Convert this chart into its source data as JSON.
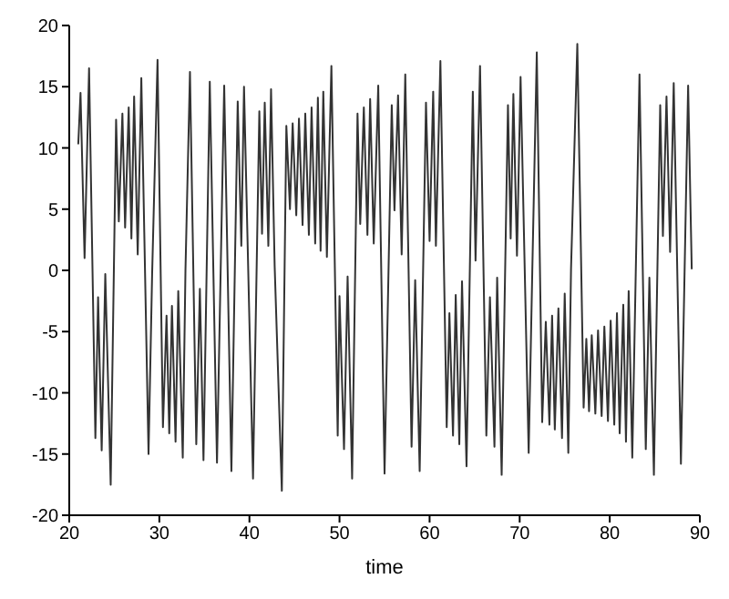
{
  "chart_data": {
    "type": "line",
    "xlabel": "time",
    "xlim": [
      20,
      90
    ],
    "xticks": [
      20,
      30,
      40,
      50,
      60,
      70,
      80,
      90
    ],
    "ylim": [
      -20,
      20
    ],
    "yticks": [
      -20,
      -15,
      -10,
      -5,
      0,
      5,
      10,
      15,
      20
    ],
    "grid": false,
    "legend": false,
    "marker": "none",
    "line_style": "solid",
    "series": [
      {
        "color": "#333333",
        "x": [
          21.0,
          21.25,
          21.7,
          22.2,
          22.9,
          23.2,
          23.6,
          24.0,
          24.6,
          25.2,
          25.5,
          25.9,
          26.2,
          26.6,
          26.9,
          27.2,
          27.6,
          28.0,
          28.8,
          29.2,
          29.8,
          30.4,
          30.8,
          31.1,
          31.4,
          31.8,
          32.1,
          32.6,
          32.9,
          33.4,
          34.1,
          34.5,
          34.9,
          35.6,
          36.4,
          37.2,
          38.0,
          38.7,
          39.1,
          39.4,
          40.4,
          41.1,
          41.4,
          41.7,
          42.1,
          42.4,
          42.8,
          43.6,
          44.1,
          44.5,
          44.8,
          45.2,
          45.5,
          45.9,
          46.2,
          46.6,
          46.9,
          47.3,
          47.6,
          47.9,
          48.2,
          48.6,
          49.1,
          49.8,
          50.0,
          50.5,
          50.9,
          51.4,
          52.0,
          52.3,
          52.7,
          53.1,
          53.4,
          53.8,
          54.3,
          55.0,
          55.8,
          56.1,
          56.5,
          56.9,
          57.3,
          58.0,
          58.4,
          58.9,
          59.6,
          60.0,
          60.4,
          60.7,
          61.2,
          61.9,
          62.2,
          62.6,
          62.9,
          63.3,
          63.6,
          64.1,
          64.8,
          65.1,
          65.6,
          66.3,
          66.7,
          67.2,
          67.5,
          68.0,
          68.7,
          69.0,
          69.3,
          69.7,
          70.1,
          71.0,
          71.4,
          71.9,
          72.5,
          72.9,
          73.3,
          73.6,
          73.9,
          74.3,
          74.7,
          75.0,
          75.4,
          75.7,
          76.4,
          77.1,
          77.4,
          77.7,
          78.0,
          78.4,
          78.7,
          79.1,
          79.4,
          79.8,
          80.1,
          80.5,
          80.8,
          81.1,
          81.5,
          81.8,
          82.1,
          82.5,
          83.3,
          84.0,
          84.4,
          84.9,
          85.6,
          85.9,
          86.3,
          86.7,
          87.1,
          87.9,
          88.7,
          89.1
        ],
        "values": [
          10.3,
          14.5,
          1,
          16.5,
          -13.7,
          -2.2,
          -14.7,
          -0.3,
          -17.5,
          12.3,
          4,
          12.8,
          3.5,
          13.3,
          2.6,
          14.2,
          1.3,
          15.7,
          -15,
          -0.3,
          17.2,
          -12.8,
          -3.7,
          -13.3,
          -2.9,
          -14,
          -1.7,
          -15.3,
          0,
          16.2,
          -14.2,
          -1.5,
          -15.5,
          15.4,
          -15.7,
          15.1,
          -16.4,
          13.8,
          2,
          15,
          -17,
          13,
          3,
          13.7,
          2,
          14.8,
          0.4,
          -18,
          11.8,
          5,
          12,
          4.5,
          12.4,
          3.7,
          12.8,
          2.9,
          13.3,
          2.2,
          14.1,
          1.6,
          14.6,
          1.1,
          16.7,
          -13.5,
          -2.1,
          -14.6,
          -0.5,
          -17,
          12.8,
          3.8,
          13.3,
          2.9,
          14,
          2.2,
          15.1,
          -16.6,
          13.5,
          4.9,
          14.3,
          1.3,
          16,
          -14.4,
          -0.8,
          -16.4,
          13.7,
          2.4,
          14.6,
          2,
          17.1,
          -12.8,
          -3.5,
          -13.5,
          -2,
          -14.2,
          -0.9,
          -16,
          14.6,
          0.8,
          16.7,
          -13.5,
          -2.2,
          -14.4,
          -0.6,
          -16.7,
          13.5,
          2.6,
          14.4,
          1.2,
          15.8,
          -14.9,
          -0.1,
          17.8,
          -12.4,
          -4.2,
          -12.6,
          -3.7,
          -13,
          -3.1,
          -13.7,
          -1.9,
          -14.9,
          0.1,
          18.5,
          -11.2,
          -5.6,
          -11.5,
          -5.3,
          -11.7,
          -4.9,
          -11.9,
          -4.6,
          -12.3,
          -4.1,
          -12.6,
          -3.5,
          -13.3,
          -2.8,
          -14,
          -1.7,
          -15.3,
          16,
          -14.6,
          -0.6,
          -16.7,
          13.5,
          2.8,
          14.2,
          1.5,
          15.3,
          -15.8,
          15.1,
          0.1
        ]
      }
    ]
  }
}
